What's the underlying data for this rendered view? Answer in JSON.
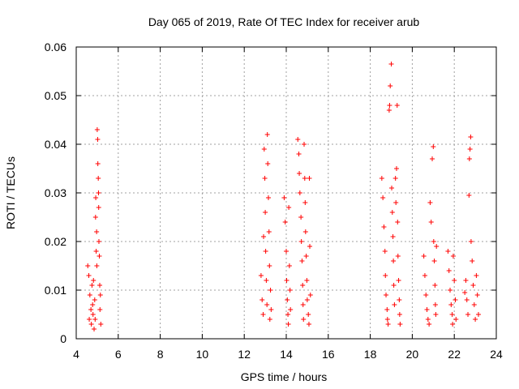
{
  "chart_data": {
    "type": "scatter",
    "title": "Day 065 of 2019, Rate Of TEC Index for receiver arub",
    "xlabel": "GPS time / hours",
    "ylabel": "ROTI / TECUs",
    "xlim": [
      4,
      24
    ],
    "ylim": [
      0,
      0.06
    ],
    "x_ticks": [
      "4",
      "6",
      "8",
      "10",
      "12",
      "14",
      "16",
      "18",
      "20",
      "22",
      "24"
    ],
    "y_ticks": [
      "0",
      "0.01",
      "0.02",
      "0.03",
      "0.04",
      "0.05",
      "0.06"
    ],
    "grid": true,
    "marker": "+",
    "color": "#ff0000",
    "points": [
      [
        4.55,
        0.015
      ],
      [
        4.6,
        0.013
      ],
      [
        4.62,
        0.004
      ],
      [
        4.65,
        0.009
      ],
      [
        4.7,
        0.006
      ],
      [
        4.72,
        0.003
      ],
      [
        4.75,
        0.011
      ],
      [
        4.78,
        0.007
      ],
      [
        4.8,
        0.005
      ],
      [
        4.82,
        0.012
      ],
      [
        4.85,
        0.002
      ],
      [
        4.88,
        0.008
      ],
      [
        4.9,
        0.004
      ],
      [
        4.92,
        0.025
      ],
      [
        4.93,
        0.029
      ],
      [
        4.95,
        0.018
      ],
      [
        4.97,
        0.022
      ],
      [
        4.98,
        0.015
      ],
      [
        5.0,
        0.043
      ],
      [
        5.02,
        0.041
      ],
      [
        5.03,
        0.036
      ],
      [
        5.05,
        0.033
      ],
      [
        5.06,
        0.03
      ],
      [
        5.07,
        0.027
      ],
      [
        5.08,
        0.02
      ],
      [
        5.1,
        0.017
      ],
      [
        5.12,
        0.011
      ],
      [
        5.13,
        0.006
      ],
      [
        5.15,
        0.009
      ],
      [
        5.17,
        0.003
      ],
      [
        12.8,
        0.013
      ],
      [
        12.85,
        0.008
      ],
      [
        12.9,
        0.005
      ],
      [
        12.92,
        0.021
      ],
      [
        12.95,
        0.039
      ],
      [
        12.98,
        0.033
      ],
      [
        13.0,
        0.026
      ],
      [
        13.02,
        0.018
      ],
      [
        13.05,
        0.012
      ],
      [
        13.08,
        0.007
      ],
      [
        13.1,
        0.042
      ],
      [
        13.12,
        0.036
      ],
      [
        13.15,
        0.029
      ],
      [
        13.18,
        0.022
      ],
      [
        13.2,
        0.015
      ],
      [
        13.22,
        0.004
      ],
      [
        13.25,
        0.01
      ],
      [
        13.28,
        0.006
      ],
      [
        13.9,
        0.029
      ],
      [
        13.95,
        0.024
      ],
      [
        14.0,
        0.018
      ],
      [
        14.02,
        0.012
      ],
      [
        14.05,
        0.008
      ],
      [
        14.08,
        0.005
      ],
      [
        14.1,
        0.003
      ],
      [
        14.12,
        0.027
      ],
      [
        14.15,
        0.015
      ],
      [
        14.18,
        0.01
      ],
      [
        14.2,
        0.006
      ],
      [
        14.55,
        0.041
      ],
      [
        14.6,
        0.038
      ],
      [
        14.62,
        0.034
      ],
      [
        14.65,
        0.03
      ],
      [
        14.7,
        0.025
      ],
      [
        14.72,
        0.02
      ],
      [
        14.75,
        0.016
      ],
      [
        14.78,
        0.011
      ],
      [
        14.8,
        0.007
      ],
      [
        14.82,
        0.004
      ],
      [
        14.85,
        0.04
      ],
      [
        14.88,
        0.033
      ],
      [
        14.9,
        0.028
      ],
      [
        14.92,
        0.022
      ],
      [
        14.95,
        0.017
      ],
      [
        14.98,
        0.012
      ],
      [
        15.0,
        0.008
      ],
      [
        15.05,
        0.005
      ],
      [
        15.08,
        0.003
      ],
      [
        15.1,
        0.033
      ],
      [
        15.12,
        0.019
      ],
      [
        15.15,
        0.009
      ],
      [
        18.55,
        0.033
      ],
      [
        18.6,
        0.029
      ],
      [
        18.65,
        0.023
      ],
      [
        18.7,
        0.018
      ],
      [
        18.72,
        0.013
      ],
      [
        18.75,
        0.009
      ],
      [
        18.8,
        0.006
      ],
      [
        18.82,
        0.004
      ],
      [
        18.85,
        0.003
      ],
      [
        18.9,
        0.047
      ],
      [
        18.92,
        0.048
      ],
      [
        18.95,
        0.052
      ],
      [
        19.0,
        0.0565
      ],
      [
        19.02,
        0.031
      ],
      [
        19.05,
        0.026
      ],
      [
        19.08,
        0.021
      ],
      [
        19.1,
        0.016
      ],
      [
        19.12,
        0.011
      ],
      [
        19.15,
        0.007
      ],
      [
        19.2,
        0.033
      ],
      [
        19.22,
        0.028
      ],
      [
        19.25,
        0.035
      ],
      [
        19.28,
        0.048
      ],
      [
        19.3,
        0.024
      ],
      [
        19.32,
        0.017
      ],
      [
        19.35,
        0.012
      ],
      [
        19.38,
        0.008
      ],
      [
        19.4,
        0.005
      ],
      [
        19.42,
        0.003
      ],
      [
        20.55,
        0.017
      ],
      [
        20.6,
        0.013
      ],
      [
        20.65,
        0.009
      ],
      [
        20.7,
        0.006
      ],
      [
        20.75,
        0.004
      ],
      [
        20.8,
        0.003
      ],
      [
        20.85,
        0.028
      ],
      [
        20.9,
        0.024
      ],
      [
        20.95,
        0.037
      ],
      [
        21.0,
        0.0395
      ],
      [
        21.02,
        0.02
      ],
      [
        21.05,
        0.016
      ],
      [
        21.08,
        0.011
      ],
      [
        21.1,
        0.007
      ],
      [
        21.12,
        0.005
      ],
      [
        21.15,
        0.019
      ],
      [
        21.7,
        0.018
      ],
      [
        21.75,
        0.014
      ],
      [
        21.8,
        0.01
      ],
      [
        21.85,
        0.007
      ],
      [
        21.9,
        0.005
      ],
      [
        21.92,
        0.003
      ],
      [
        21.95,
        0.017
      ],
      [
        22.0,
        0.012
      ],
      [
        22.05,
        0.008
      ],
      [
        22.08,
        0.004
      ],
      [
        22.5,
        0.0095
      ],
      [
        22.55,
        0.012
      ],
      [
        22.6,
        0.008
      ],
      [
        22.65,
        0.005
      ],
      [
        22.7,
        0.0295
      ],
      [
        22.72,
        0.037
      ],
      [
        22.75,
        0.039
      ],
      [
        22.78,
        0.0415
      ],
      [
        22.8,
        0.02
      ],
      [
        22.85,
        0.016
      ],
      [
        22.9,
        0.011
      ],
      [
        22.95,
        0.007
      ],
      [
        23.0,
        0.004
      ],
      [
        23.05,
        0.013
      ],
      [
        23.1,
        0.009
      ],
      [
        23.15,
        0.005
      ]
    ]
  }
}
